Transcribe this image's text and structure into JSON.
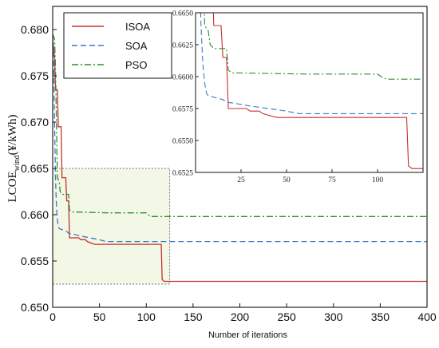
{
  "chart_data": {
    "type": "line",
    "xlabel": "Number of iterations",
    "ylabel": {
      "main": "LCOE",
      "sub": "wind",
      "unit": "(¥/kWh)"
    },
    "xlim": [
      0,
      400
    ],
    "ylim": [
      0.65,
      0.6825
    ],
    "xticks": [
      "0",
      "50",
      "100",
      "150",
      "200",
      "250",
      "300",
      "350",
      "400"
    ],
    "yticks": [
      "0.650",
      "0.655",
      "0.660",
      "0.665",
      "0.670",
      "0.675",
      "0.680"
    ],
    "legend_position": "top-left",
    "series": [
      {
        "name": "ISOA",
        "color": "#c8302c",
        "dash": "solid",
        "points": [
          [
            0,
            0.679
          ],
          [
            2,
            0.677
          ],
          [
            3,
            0.6735
          ],
          [
            5,
            0.6735
          ],
          [
            6,
            0.6695
          ],
          [
            9,
            0.6695
          ],
          [
            10,
            0.664
          ],
          [
            14,
            0.664
          ],
          [
            15,
            0.6615
          ],
          [
            17,
            0.6615
          ],
          [
            18,
            0.6575
          ],
          [
            28,
            0.6575
          ],
          [
            30,
            0.6573
          ],
          [
            35,
            0.6573
          ],
          [
            37,
            0.6571
          ],
          [
            42,
            0.6569
          ],
          [
            45,
            0.6568
          ],
          [
            60,
            0.6568
          ],
          [
            116,
            0.6568
          ],
          [
            117,
            0.653
          ],
          [
            119,
            0.6528
          ],
          [
            400,
            0.6528
          ]
        ]
      },
      {
        "name": "SOA",
        "color": "#3a78c4",
        "dash": "dashed",
        "points": [
          [
            0,
            0.6795
          ],
          [
            1,
            0.676
          ],
          [
            2,
            0.67
          ],
          [
            3,
            0.664
          ],
          [
            4,
            0.661
          ],
          [
            5,
            0.6595
          ],
          [
            6,
            0.6587
          ],
          [
            7,
            0.6585
          ],
          [
            15,
            0.6582
          ],
          [
            17,
            0.658
          ],
          [
            22,
            0.6579
          ],
          [
            30,
            0.6577
          ],
          [
            40,
            0.6575
          ],
          [
            50,
            0.6573
          ],
          [
            57,
            0.6571
          ],
          [
            60,
            0.6571
          ],
          [
            400,
            0.6571
          ]
        ]
      },
      {
        "name": "PSO",
        "color": "#2e8b2e",
        "dash": "dashdot",
        "points": [
          [
            0,
            0.6795
          ],
          [
            2,
            0.679
          ],
          [
            3,
            0.676
          ],
          [
            4,
            0.67
          ],
          [
            5,
            0.664
          ],
          [
            7,
            0.6636
          ],
          [
            8,
            0.6625
          ],
          [
            10,
            0.6622
          ],
          [
            17,
            0.6622
          ],
          [
            18,
            0.6605
          ],
          [
            20,
            0.6603
          ],
          [
            60,
            0.6602
          ],
          [
            100,
            0.6602
          ],
          [
            102,
            0.66
          ],
          [
            105,
            0.6598
          ],
          [
            400,
            0.6598
          ]
        ]
      }
    ],
    "highlight_region": {
      "x": [
        0,
        125
      ],
      "y": [
        0.6525,
        0.665
      ],
      "fill": "#f2f7e6",
      "border": "#777777"
    },
    "inset": {
      "xlim": [
        0,
        125
      ],
      "ylim": [
        0.6525,
        0.665
      ],
      "xticks": [
        "25",
        "50",
        "75",
        "100"
      ],
      "yticks": [
        "0.6525",
        "0.6550",
        "0.6575",
        "0.6600",
        "0.6625",
        "0.6650"
      ]
    }
  }
}
